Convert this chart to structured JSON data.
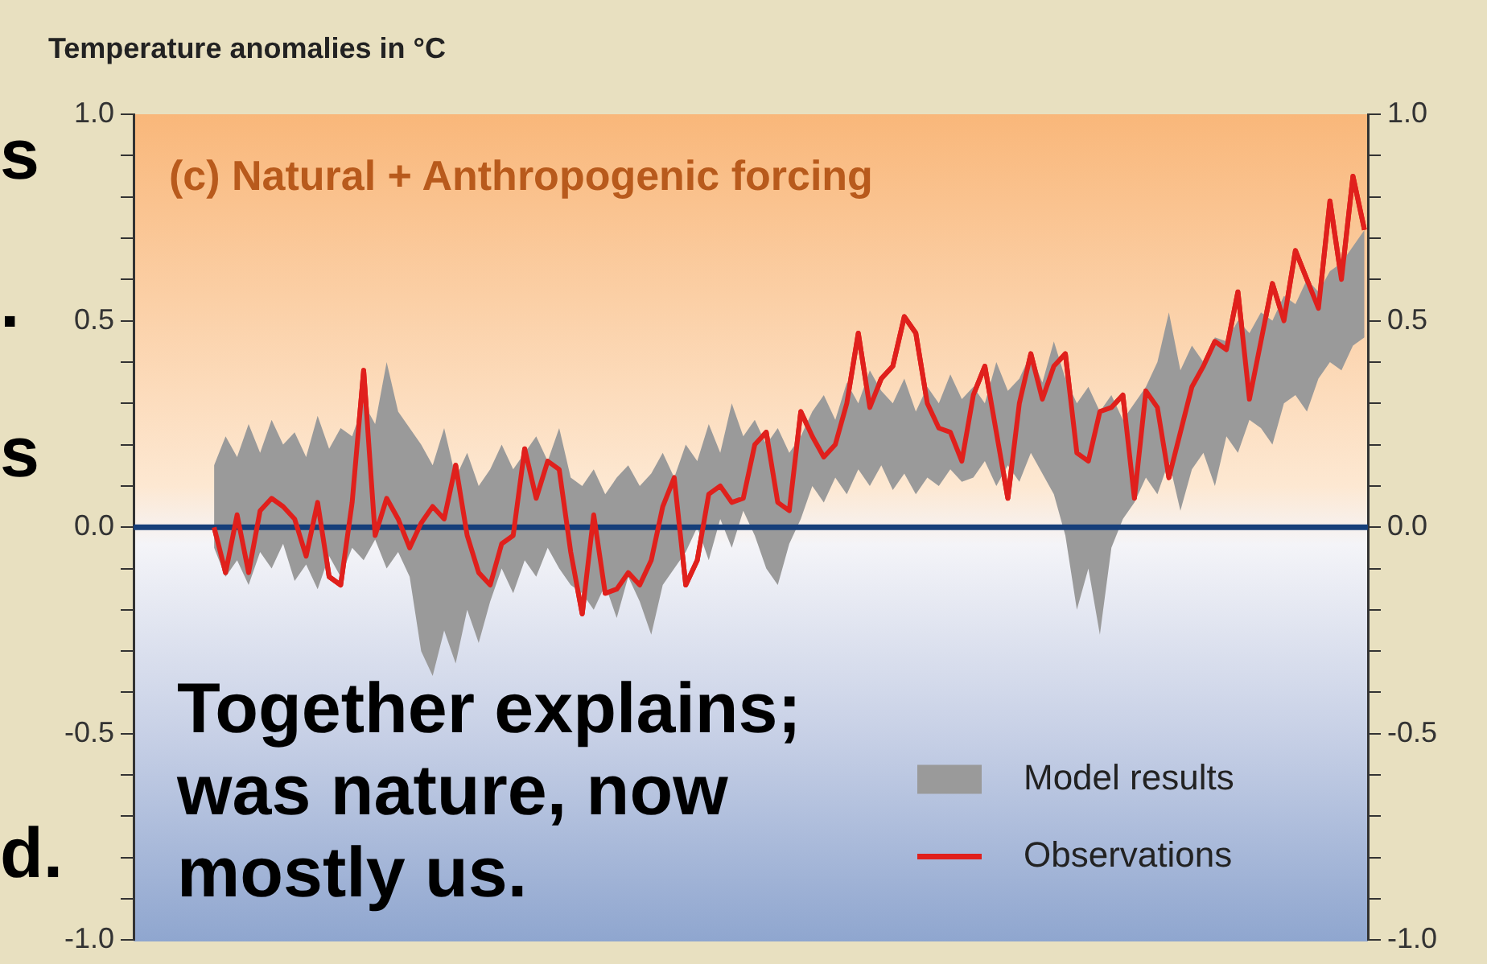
{
  "chart_data": {
    "type": "line",
    "title": "(c) Natural + Anthropogenic forcing",
    "ylabel": "Temperature anomalies in °C",
    "annotations": [
      "s",
      ".",
      "s",
      "Together explains; was nature, now mostly us.",
      "d."
    ],
    "categories": [
      null,
      null,
      null,
      null,
      null,
      null,
      null,
      null,
      null,
      null,
      null,
      null,
      null,
      null,
      null,
      null,
      null,
      null,
      null,
      null,
      null,
      null,
      null,
      null,
      null,
      null,
      null,
      null,
      null,
      null,
      null,
      null,
      null,
      null,
      null,
      null,
      null,
      null,
      null,
      null,
      null,
      null,
      null,
      null,
      null,
      null,
      null,
      null,
      null,
      null,
      null,
      null,
      null,
      null,
      null,
      null,
      null,
      null,
      null,
      null,
      null,
      null,
      null,
      null,
      null,
      null,
      null,
      null,
      null,
      null,
      null,
      null,
      null,
      null,
      null,
      null,
      null,
      null,
      null,
      null,
      null,
      null,
      null,
      null,
      null,
      null,
      null,
      null,
      null,
      null,
      null,
      null,
      null,
      null,
      null,
      null,
      null,
      null,
      null,
      null,
      null
    ],
    "series": [
      {
        "name": "Model results",
        "type": "area",
        "color": "#9a9a9a",
        "values": [
          null,
          null,
          null,
          null,
          null,
          null,
          null,
          null,
          null,
          null,
          null,
          null,
          null,
          null,
          null,
          null,
          null,
          null,
          null,
          null,
          null,
          null,
          null,
          null,
          null,
          null,
          null,
          null,
          null,
          null,
          null,
          null,
          null,
          null,
          null,
          null,
          null,
          null,
          null,
          null,
          null,
          null,
          null,
          null,
          null,
          null,
          null,
          null,
          null,
          null,
          null,
          null,
          null,
          null,
          null,
          null,
          null,
          null,
          null,
          null,
          null,
          null,
          null,
          null,
          null,
          null,
          null,
          null,
          null,
          null,
          null,
          null,
          null,
          null,
          null,
          null,
          null,
          null,
          null,
          null,
          null,
          null,
          null,
          null,
          null,
          null,
          null,
          null,
          null,
          null,
          null,
          null,
          null,
          null,
          null,
          null,
          null,
          null,
          null,
          null,
          null
        ],
        "lower": [
          -0.05,
          -0.12,
          -0.08,
          -0.14,
          -0.06,
          -0.1,
          -0.04,
          -0.13,
          -0.09,
          -0.15,
          -0.07,
          -0.12,
          -0.05,
          -0.08,
          -0.03,
          -0.1,
          -0.06,
          -0.12,
          -0.3,
          -0.36,
          -0.25,
          -0.33,
          -0.2,
          -0.28,
          -0.18,
          -0.1,
          -0.16,
          -0.08,
          -0.12,
          -0.05,
          -0.1,
          -0.14,
          -0.16,
          -0.2,
          -0.14,
          -0.22,
          -0.12,
          -0.18,
          -0.26,
          -0.14,
          -0.1,
          -0.06,
          0.0,
          -0.08,
          0.02,
          -0.05,
          0.04,
          -0.02,
          -0.1,
          -0.14,
          -0.04,
          0.02,
          0.1,
          0.06,
          0.12,
          0.08,
          0.14,
          0.1,
          0.15,
          0.09,
          0.13,
          0.08,
          0.12,
          0.1,
          0.14,
          0.11,
          0.12,
          0.16,
          0.1,
          0.15,
          0.11,
          0.18,
          0.13,
          0.08,
          -0.02,
          -0.2,
          -0.1,
          -0.26,
          -0.05,
          0.02,
          0.06,
          0.12,
          0.08,
          0.16,
          0.04,
          0.14,
          0.18,
          0.1,
          0.22,
          0.18,
          0.26,
          0.24,
          0.2,
          0.3,
          0.32,
          0.28,
          0.36,
          0.4,
          0.38,
          0.44,
          0.46
        ],
        "upper": [
          0.15,
          0.22,
          0.17,
          0.25,
          0.18,
          0.26,
          0.2,
          0.23,
          0.17,
          0.27,
          0.19,
          0.24,
          0.22,
          0.3,
          0.25,
          0.4,
          0.28,
          0.24,
          0.2,
          0.15,
          0.24,
          0.12,
          0.18,
          0.1,
          0.14,
          0.2,
          0.14,
          0.18,
          0.22,
          0.16,
          0.24,
          0.12,
          0.1,
          0.14,
          0.08,
          0.12,
          0.15,
          0.1,
          0.13,
          0.18,
          0.12,
          0.2,
          0.16,
          0.25,
          0.18,
          0.3,
          0.22,
          0.26,
          0.2,
          0.24,
          0.18,
          0.22,
          0.28,
          0.32,
          0.26,
          0.35,
          0.3,
          0.38,
          0.33,
          0.3,
          0.36,
          0.28,
          0.34,
          0.3,
          0.37,
          0.31,
          0.34,
          0.3,
          0.4,
          0.33,
          0.36,
          0.42,
          0.35,
          0.45,
          0.36,
          0.3,
          0.34,
          0.28,
          0.32,
          0.26,
          0.3,
          0.34,
          0.4,
          0.52,
          0.38,
          0.44,
          0.4,
          0.46,
          0.45,
          0.5,
          0.47,
          0.52,
          0.5,
          0.56,
          0.54,
          0.6,
          0.57,
          0.62,
          0.64,
          0.68,
          0.72
        ]
      },
      {
        "name": "Observations",
        "color": "#e0201c",
        "values": [
          0.0,
          -0.11,
          0.03,
          -0.11,
          0.04,
          0.07,
          0.05,
          0.02,
          -0.07,
          0.06,
          -0.12,
          -0.14,
          0.06,
          0.38,
          -0.02,
          0.07,
          0.02,
          -0.05,
          0.01,
          0.05,
          0.02,
          0.15,
          -0.02,
          -0.11,
          -0.14,
          -0.04,
          -0.02,
          0.19,
          0.07,
          0.16,
          0.14,
          -0.06,
          -0.21,
          0.03,
          -0.16,
          -0.15,
          -0.11,
          -0.14,
          -0.08,
          0.05,
          0.12,
          -0.14,
          -0.08,
          0.08,
          0.1,
          0.06,
          0.07,
          0.2,
          0.23,
          0.06,
          0.04,
          0.28,
          0.22,
          0.17,
          0.2,
          0.3,
          0.47,
          0.29,
          0.36,
          0.39,
          0.51,
          0.47,
          0.3,
          0.24,
          0.23,
          0.16,
          0.32,
          0.39,
          0.23,
          0.07,
          0.3,
          0.42,
          0.31,
          0.39,
          0.42,
          0.18,
          0.16,
          0.28,
          0.29,
          0.32,
          0.07,
          0.33,
          0.29,
          0.12,
          0.23,
          0.34,
          0.39,
          0.45,
          0.43,
          0.57,
          0.31,
          0.45,
          0.59,
          0.5,
          0.67,
          0.6,
          0.53,
          0.79,
          0.6,
          0.85,
          0.72
        ]
      }
    ],
    "ylim": [
      -1.0,
      1.0
    ],
    "yticks": [
      {
        "value": -1.0,
        "label": "-1.0"
      },
      {
        "value": -0.9,
        "label": null
      },
      {
        "value": -0.8,
        "label": null
      },
      {
        "value": -0.7,
        "label": null
      },
      {
        "value": -0.6,
        "label": null
      },
      -0.5,
      {
        "value": -0.4,
        "label": null
      },
      {
        "value": -0.3,
        "label": null
      },
      {
        "value": -0.2,
        "label": null
      },
      {
        "value": -0.1,
        "label": null
      },
      {
        "value": 0,
        "label": "0.0"
      },
      {
        "value": 0.1,
        "label": null
      },
      {
        "value": 0.2,
        "label": null
      },
      {
        "value": 0.3,
        "label": null
      },
      {
        "value": 0.4,
        "label": null
      },
      0.5,
      {
        "value": 0.6,
        "label": null
      },
      {
        "value": 0.7,
        "label": null
      },
      {
        "value": 0.8,
        "label": null
      },
      {
        "value": 0.9,
        "label": null
      },
      {
        "value": 1.0,
        "label": "1.0"
      }
    ],
    "y2lim": [
      -1.0,
      1.0
    ],
    "y2ticks": [
      {
        "value": -1.0,
        "label": "-1.0"
      },
      {
        "value": -0.9,
        "label": null
      },
      {
        "value": -0.8,
        "label": null
      },
      {
        "value": -0.7,
        "label": null
      },
      {
        "value": -0.6,
        "label": null
      },
      -0.5,
      {
        "value": -0.4,
        "label": null
      },
      {
        "value": -0.3,
        "label": null
      },
      {
        "value": -0.2,
        "label": null
      },
      {
        "value": -0.1,
        "label": null
      },
      {
        "value": 0,
        "label": "0.0"
      },
      {
        "value": 0.1,
        "label": null
      },
      {
        "value": 0.2,
        "label": null
      },
      {
        "value": 0.3,
        "label": null
      },
      {
        "value": 0.4,
        "label": null
      },
      0.5,
      {
        "value": 0.6,
        "label": null
      },
      {
        "value": 0.7,
        "label": null
      },
      {
        "value": 0.8,
        "label": null
      },
      {
        "value": 0.9,
        "label": null
      },
      {
        "value": 1.0,
        "label": "1.0"
      }
    ],
    "ref_lines": [
      {
        "axis": "y",
        "value": 0,
        "color": "#163f7a"
      }
    ],
    "legend": "bottom right",
    "grid": false,
    "marker": "none",
    "line_style": "solid"
  }
}
